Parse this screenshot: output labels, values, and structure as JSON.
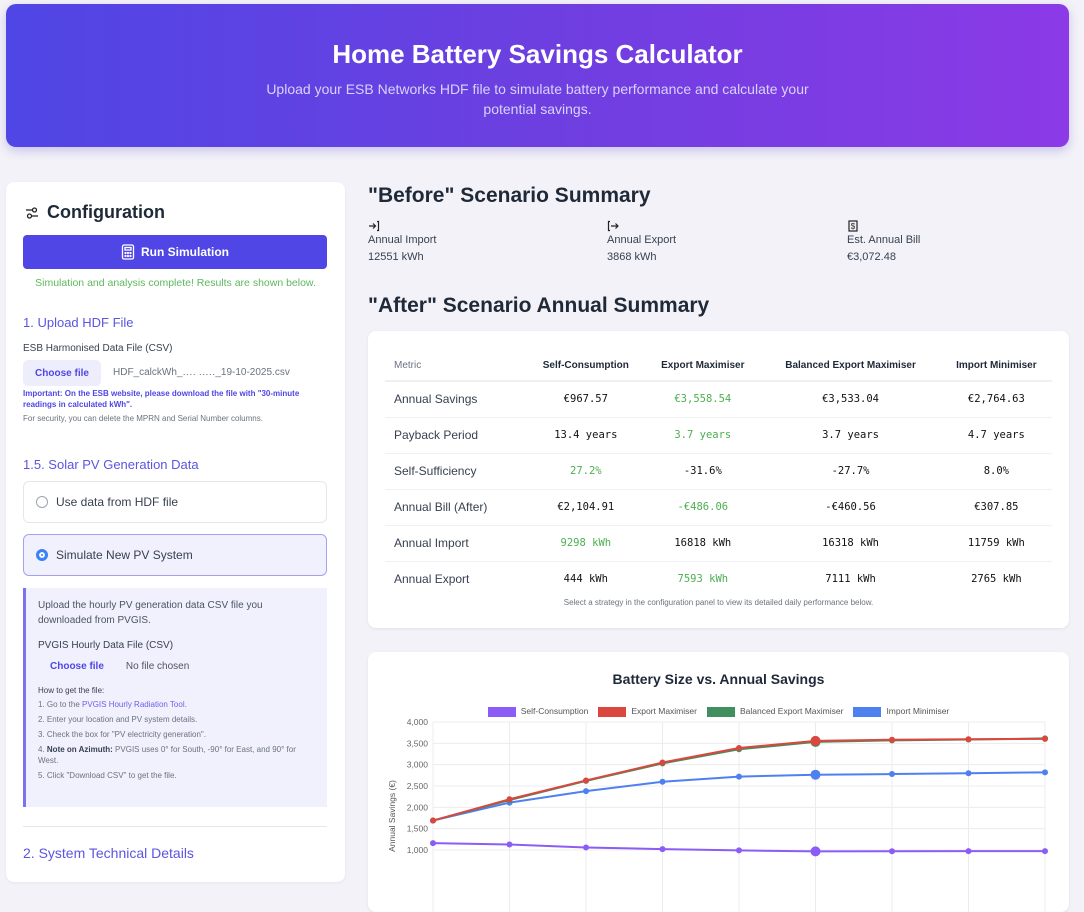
{
  "header": {
    "title": "Home Battery Savings Calculator",
    "subtitle": "Upload your ESB Networks HDF file to simulate battery performance and calculate your potential savings."
  },
  "config": {
    "title": "Configuration",
    "run_label": "Run Simulation",
    "status": "Simulation and analysis complete! Results are shown below.",
    "upload": {
      "heading": "1. Upload HDF File",
      "label": "ESB Harmonised Data File (CSV)",
      "button": "Choose file",
      "filename": "HDF_calckWh_․․․․ ․․․․․_19-10-2025.csv",
      "important": "Important: On the ESB website, please download the file with \"30-minute readings in calculated kWh\".",
      "security": "For security, you can delete the MPRN and Serial Number columns."
    },
    "pv": {
      "heading": "1.5. Solar PV Generation Data",
      "options": [
        {
          "label": "Use data from HDF file",
          "selected": false
        },
        {
          "label": "Simulate New PV System",
          "selected": true
        }
      ],
      "intro": "Upload the hourly PV generation data CSV file you downloaded from PVGIS.",
      "file_label": "PVGIS Hourly Data File (CSV)",
      "button": "Choose file",
      "no_file": "No file chosen",
      "how_title": "How to get the file:",
      "step1_prefix": "1. Go to the ",
      "step1_link": "PVGIS Hourly Radiation Tool.",
      "step2": "2. Enter your location and PV system details.",
      "step3": "3. Check the box for \"PV electricity generation\".",
      "step4_prefix": "4. ",
      "step4_bold": "Note on Azimuth:",
      "step4_text": " PVGIS uses 0° for South, -90° for East, and 90° for West.",
      "step5": "5. Click \"Download CSV\" to get the file."
    },
    "next_heading": "2. System Technical Details"
  },
  "before": {
    "title": "\"Before\" Scenario Summary",
    "stats": [
      {
        "label": "Annual Import",
        "value": "12551 kWh",
        "icon": "import-icon"
      },
      {
        "label": "Annual Export",
        "value": "3868 kWh",
        "icon": "export-icon"
      },
      {
        "label": "Est. Annual Bill",
        "value": "€3,072.48",
        "icon": "bill-icon"
      }
    ]
  },
  "after": {
    "title": "\"After\" Scenario Annual Summary",
    "columns": [
      "Metric",
      "Self-Consumption",
      "Export Maximiser",
      "Balanced Export Maximiser",
      "Import Minimiser"
    ],
    "rows": [
      {
        "metric": "Annual Savings",
        "values": [
          "€967.57",
          "€3,558.54",
          "€3,533.04",
          "€2,764.63"
        ],
        "best": 1
      },
      {
        "metric": "Payback Period",
        "values": [
          "13.4 years",
          "3.7 years",
          "3.7 years",
          "4.7 years"
        ],
        "best": 1
      },
      {
        "metric": "Self-Sufficiency",
        "values": [
          "27.2%",
          "-31.6%",
          "-27.7%",
          "8.0%"
        ],
        "best": 0
      },
      {
        "metric": "Annual Bill (After)",
        "values": [
          "€2,104.91",
          "-€486.06",
          "-€460.56",
          "€307.85"
        ],
        "best": 1
      },
      {
        "metric": "Annual Import",
        "values": [
          "9298 kWh",
          "16818 kWh",
          "16318 kWh",
          "11759 kWh"
        ],
        "best": 0
      },
      {
        "metric": "Annual Export",
        "values": [
          "444 kWh",
          "7593 kWh",
          "7111 kWh",
          "2765 kWh"
        ],
        "best": 1
      }
    ],
    "footnote": "Select a strategy in the configuration panel to view its detailed daily performance below."
  },
  "chart_data": {
    "type": "line",
    "title": "Battery Size vs. Annual Savings",
    "xlabel": "",
    "ylabel": "Annual Savings (€)",
    "ylim": [
      1000,
      4000
    ],
    "yticks": [
      1000,
      1500,
      2000,
      2500,
      3000,
      3500,
      4000
    ],
    "ytick_labels": [
      "1,000",
      "1,500",
      "2,000",
      "2,500",
      "3,000",
      "3,500",
      "4,000"
    ],
    "x": [
      1,
      2,
      3,
      4,
      5,
      6,
      7,
      8,
      9
    ],
    "highlight_index": 5,
    "legend": "top",
    "grid": true,
    "series": [
      {
        "name": "Self-Consumption",
        "color": "#8b5cf6",
        "values": [
          1160,
          1130,
          1060,
          1020,
          990,
          968,
          970,
          975,
          975
        ]
      },
      {
        "name": "Import Minimiser",
        "color": "#4f80f0",
        "values": [
          1690,
          2110,
          2380,
          2600,
          2720,
          2765,
          2780,
          2800,
          2820
        ]
      },
      {
        "name": "Balanced Export Maximiser",
        "color": "#3f8f5f",
        "values": [
          1690,
          2170,
          2620,
          3030,
          3360,
          3533,
          3570,
          3590,
          3615
        ]
      },
      {
        "name": "Export Maximiser",
        "color": "#d9473f",
        "values": [
          1690,
          2190,
          2630,
          3050,
          3390,
          3558,
          3585,
          3595,
          3605
        ]
      }
    ],
    "legend_order": [
      {
        "name": "Self-Consumption",
        "color": "#8b5cf6"
      },
      {
        "name": "Export Maximiser",
        "color": "#d9473f"
      },
      {
        "name": "Balanced Export Maximiser",
        "color": "#3f8f5f"
      },
      {
        "name": "Import Minimiser",
        "color": "#4f80f0"
      }
    ]
  }
}
